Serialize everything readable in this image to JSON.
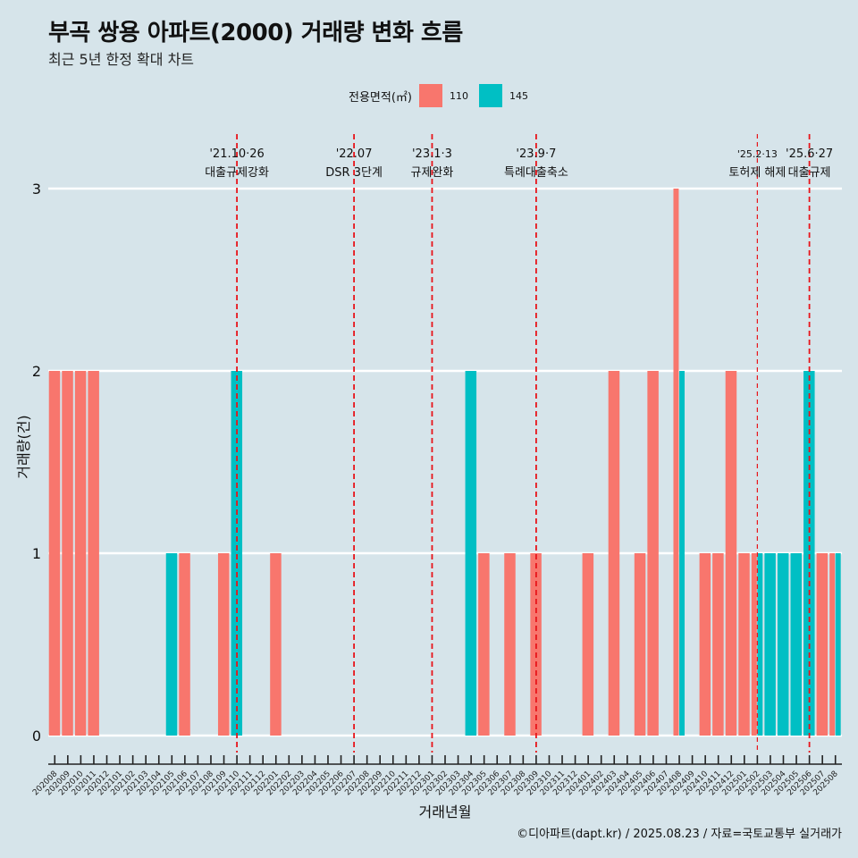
{
  "title": "부곡 쌍용 아파트(2000) 거래량 변화 흐름",
  "subtitle": "최근 5년 한정 확대 차트",
  "caption": "©디아파트(dapt.kr) / 2025.08.23 / 자료=국토교통부 실거래가",
  "chart_data": {
    "type": "bar",
    "xlabel": "거래년월",
    "ylabel": "거래량(건)",
    "ylim": [
      0,
      3
    ],
    "yticks": [
      "0",
      "1",
      "2",
      "3"
    ],
    "legend": {
      "title": "전용면적(㎡)",
      "placement": "top"
    },
    "categories": [
      "202008",
      "202009",
      "202010",
      "202011",
      "202012",
      "202101",
      "202102",
      "202103",
      "202104",
      "202105",
      "202106",
      "202107",
      "202108",
      "202109",
      "202110",
      "202111",
      "202112",
      "202201",
      "202202",
      "202203",
      "202204",
      "202205",
      "202206",
      "202207",
      "202208",
      "202209",
      "202210",
      "202211",
      "202212",
      "202301",
      "202302",
      "202303",
      "202304",
      "202305",
      "202306",
      "202307",
      "202308",
      "202309",
      "202310",
      "202311",
      "202312",
      "202401",
      "202402",
      "202403",
      "202404",
      "202405",
      "202406",
      "202407",
      "202408",
      "202409",
      "202410",
      "202411",
      "202412",
      "202501",
      "202502",
      "202503",
      "202504",
      "202505",
      "202506",
      "202507",
      "202508"
    ],
    "series": [
      {
        "name": "110",
        "color": "#f8766d",
        "values": [
          2,
          2,
          2,
          2,
          0,
          0,
          0,
          0,
          0,
          0,
          1,
          0,
          0,
          1,
          0,
          0,
          0,
          1,
          0,
          0,
          0,
          0,
          0,
          0,
          0,
          0,
          0,
          0,
          0,
          0,
          0,
          0,
          0,
          1,
          0,
          1,
          0,
          1,
          0,
          0,
          0,
          1,
          0,
          2,
          0,
          1,
          2,
          0,
          3,
          0,
          1,
          1,
          2,
          1,
          1,
          0,
          0,
          0,
          0,
          1,
          1
        ]
      },
      {
        "name": "145",
        "color": "#00bfc4",
        "values": [
          0,
          0,
          0,
          0,
          0,
          0,
          0,
          0,
          0,
          1,
          0,
          0,
          0,
          0,
          2,
          0,
          0,
          0,
          0,
          0,
          0,
          0,
          0,
          0,
          0,
          0,
          0,
          0,
          0,
          0,
          0,
          0,
          2,
          0,
          0,
          0,
          0,
          0,
          0,
          0,
          0,
          0,
          0,
          0,
          0,
          0,
          0,
          0,
          2,
          0,
          0,
          0,
          0,
          0,
          1,
          1,
          1,
          1,
          2,
          0,
          1
        ]
      }
    ],
    "annotations": [
      {
        "category": "202110",
        "date": "'21.10·26",
        "label": "대출규제강화",
        "style": "dashed"
      },
      {
        "category": "202207",
        "date": "'22.07",
        "label": "DSR 3단계",
        "style": "dashed"
      },
      {
        "category": "202301",
        "date": "'23.1·3",
        "label": "규제완화",
        "style": "dashed"
      },
      {
        "category": "202309",
        "date": "'23.9·7",
        "label": "특례대출축소",
        "style": "dashed"
      },
      {
        "category": "202502",
        "date": "'25.2·13",
        "label": "토허제 해제",
        "style": "thin-dashed"
      },
      {
        "category": "202506",
        "date": "'25.6·27",
        "label": "대출규제",
        "style": "dashed"
      }
    ]
  }
}
